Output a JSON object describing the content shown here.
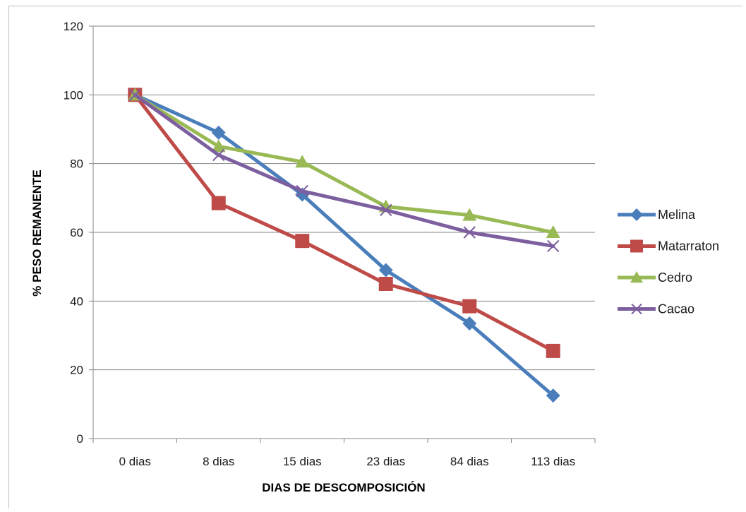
{
  "chart_data": {
    "type": "line",
    "title": "",
    "xlabel": "DIAS DE DESCOMPOSICIÓN",
    "ylabel": "% PESO REMANENTE",
    "categories": [
      "0 dias",
      "8 dias",
      "15 dias",
      "23 dias",
      "84 dias",
      "113 dias"
    ],
    "ylim": [
      0,
      120
    ],
    "yticks": [
      0,
      20,
      40,
      60,
      80,
      100,
      120
    ],
    "grid": "horizontal",
    "legend_position": "right",
    "series": [
      {
        "name": "Melina",
        "color": "#4a7ebb",
        "marker": "diamond",
        "values": [
          100,
          89,
          71,
          49,
          33.5,
          12.5
        ]
      },
      {
        "name": "Matarraton",
        "color": "#be4b48",
        "marker": "square",
        "values": [
          100,
          68.5,
          57.5,
          45,
          38.5,
          25.5
        ]
      },
      {
        "name": "Cedro",
        "color": "#98b954",
        "marker": "triangle",
        "values": [
          100,
          85,
          80.5,
          67.5,
          65,
          60
        ]
      },
      {
        "name": "Cacao",
        "color": "#7d5fa0",
        "marker": "x",
        "values": [
          100,
          82.5,
          72,
          66.5,
          60,
          56
        ]
      }
    ]
  }
}
